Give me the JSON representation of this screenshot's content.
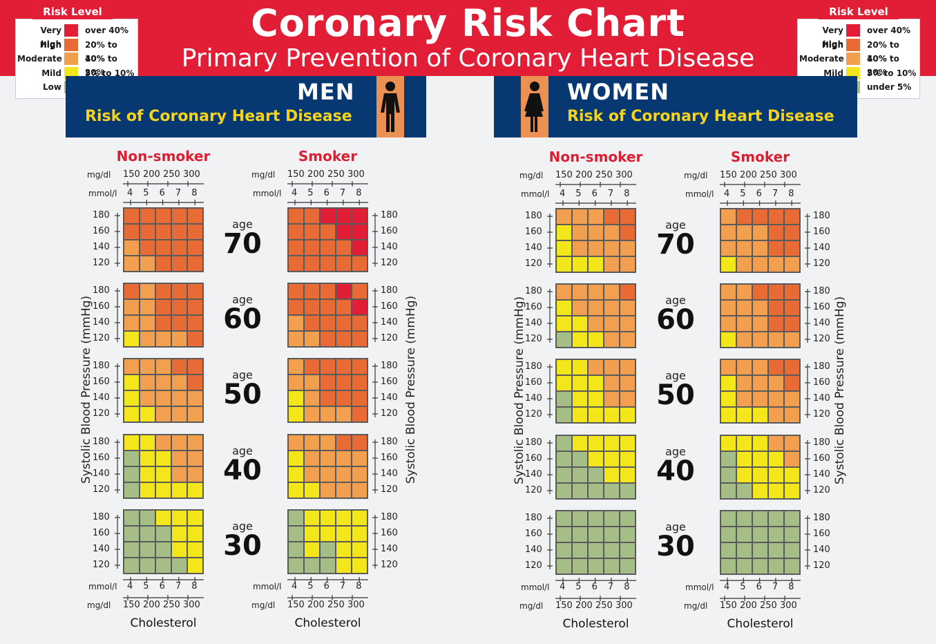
{
  "title": "Coronary Risk  Chart",
  "subtitle": "Primary Prevention of  Coronary Heart Disease",
  "colors": {
    "very_high": "#e21d36",
    "high": "#e86b35",
    "moderate": "#f2a04f",
    "mild": "#f3e61a",
    "low": "#a5be88",
    "banner": "#e21d36",
    "navy": "#073871",
    "gold": "#f4d21e"
  },
  "legend": {
    "heading": "Risk Level",
    "levels": [
      {
        "label": "Very high",
        "range": "over 40%",
        "code": "V"
      },
      {
        "label": "High",
        "range": "20% to 40%",
        "code": "H"
      },
      {
        "label": "Moderate",
        "range": "10% to 20%",
        "code": "M"
      },
      {
        "label": "Mild",
        "range": "5% to 10%",
        "code": "L"
      },
      {
        "label": "Low",
        "range": "under 5%",
        "code": "G"
      }
    ]
  },
  "icons": {
    "men": "man-figure-icon",
    "women": "woman-figure-icon"
  },
  "sections": [
    {
      "sex": "MEN",
      "subtitle": "Risk of Coronary Heart Disease"
    },
    {
      "sex": "WOMEN",
      "subtitle": "Risk of Coronary Heart Disease"
    }
  ],
  "labels": {
    "non_smoker": "Non-smoker",
    "smoker": "Smoker",
    "mgdl": "mg/dl",
    "mmol": "mmol/l",
    "mgdl_ticks": [
      "150",
      "200",
      "250",
      "300"
    ],
    "mmol_ticks": [
      "4",
      "5",
      "6",
      "7",
      "8"
    ],
    "bp_ticks": [
      "180",
      "160",
      "140",
      "120"
    ],
    "age_word": "age",
    "y_axis": "Systolic Blood Pressure (mmHg)",
    "x_axis": "Cholesterol"
  },
  "chart_data": {
    "type": "heatmap",
    "title": "Coronary Risk  Chart",
    "subtitle": "Primary Prevention of  Coronary Heart Disease",
    "xlabel": "Cholesterol",
    "ylabel": "Systolic Blood Pressure (mmHg)",
    "x_mmol": [
      4,
      5,
      6,
      7,
      8
    ],
    "x_mgdl": [
      150,
      200,
      250,
      300
    ],
    "y_bp": [
      180,
      160,
      140,
      120
    ],
    "ages": [
      70,
      60,
      50,
      40,
      30
    ],
    "legend": {
      "V": "Very high: over 40%",
      "H": "High: 20% to 40%",
      "M": "Moderate: 10% to 20%",
      "L": "Mild: 5% to 10%",
      "G": "Low: under 5%"
    },
    "men": {
      "non_smoker": {
        "70": [
          "HHHHH",
          "HHHHH",
          "MHHHH",
          "MMHHH"
        ],
        "60": [
          "HMHHH",
          "MMHHH",
          "MMHHH",
          "LMMMH"
        ],
        "50": [
          "MMMHH",
          "LMMMH",
          "LMMMM",
          "LLMMM"
        ],
        "40": [
          "LLMMM",
          "GLLMM",
          "GLLMM",
          "GLLLL"
        ],
        "30": [
          "GGLLL",
          "GGGLL",
          "GGGLL",
          "GGGGL"
        ]
      },
      "smoker": {
        "70": [
          "HHVVV",
          "HHHVV",
          "HHHHV",
          "HHHHH"
        ],
        "60": [
          "HHHVH",
          "HHHHV",
          "MHHHH",
          "MMHHH"
        ],
        "50": [
          "MHHHH",
          "MMHHH",
          "LMHHH",
          "LMMMH"
        ],
        "40": [
          "MMMHH",
          "LMMMM",
          "LMMMM",
          "LLMMM"
        ],
        "30": [
          "GLLLL",
          "GLLLL",
          "GLGLL",
          "GGGLL"
        ]
      }
    },
    "women": {
      "non_smoker": {
        "70": [
          "MMMHH",
          "LMMMH",
          "LMMMM",
          "LLLMM"
        ],
        "60": [
          "MMMMH",
          "LMMMM",
          "LLMMM",
          "GLLMM"
        ],
        "50": [
          "LLMMM",
          "LLLMM",
          "GLLMM",
          "GLLLL"
        ],
        "40": [
          "GLLLL",
          "GGLLL",
          "GGGLL",
          "GGGGG"
        ],
        "30": [
          "GGGGG",
          "GGGGG",
          "GGGGG",
          "GGGGG"
        ]
      },
      "smoker": {
        "70": [
          "MHHHH",
          "MMMHH",
          "MMMHH",
          "LMMMM"
        ],
        "60": [
          "MMHHH",
          "MMMHH",
          "MMMHH",
          "LMMMM"
        ],
        "50": [
          "MMMHH",
          "LMMMH",
          "LMMMM",
          "LLLMM"
        ],
        "40": [
          "LLLMM",
          "GLLLM",
          "GLLLL",
          "GGLLL"
        ],
        "30": [
          "GGGGG",
          "GGGGG",
          "GGGGG",
          "GGGGG"
        ]
      }
    }
  }
}
